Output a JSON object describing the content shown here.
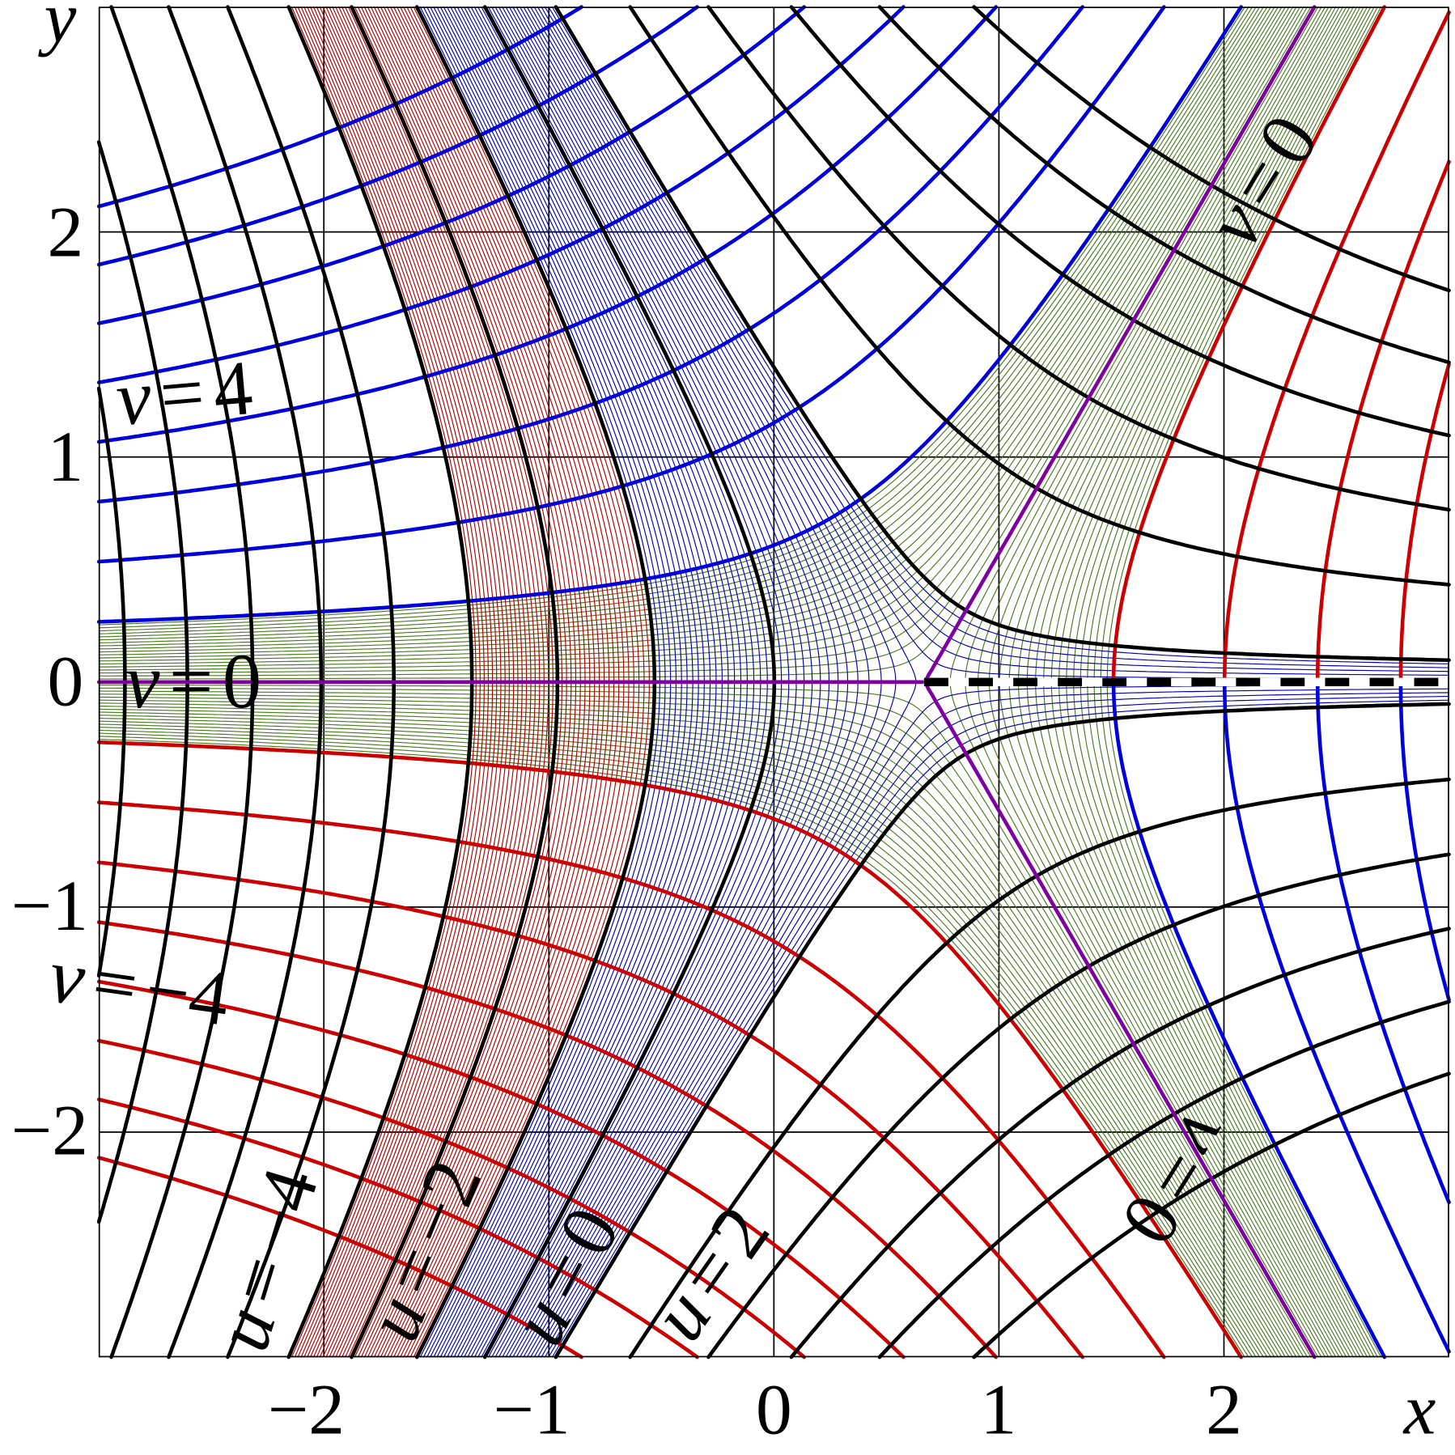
{
  "axes": {
    "x_label": "x",
    "y_label": "y",
    "x_range": [
      -3,
      3
    ],
    "y_range": [
      -3,
      3
    ],
    "x_ticks": [
      "−2",
      "−1",
      "0",
      "1",
      "2"
    ],
    "y_ticks": [
      "2",
      "1",
      "0",
      "−1",
      "−2"
    ],
    "grid": true
  },
  "labels": {
    "v_pos4": {
      "var": "v",
      "eq": "=",
      "value": "4"
    },
    "v_zero_left": {
      "var": "v",
      "eq": "=",
      "value": "0"
    },
    "v_neg4": {
      "var": "v",
      "eq": "=",
      "value": "−4"
    },
    "u_neg4": {
      "var": "u",
      "eq": "=",
      "value": "−4"
    },
    "u_neg2": {
      "var": "u",
      "eq": "=",
      "value": "−2"
    },
    "u_zero": {
      "var": "u",
      "eq": "=",
      "value": "0"
    },
    "u_pos2": {
      "var": "u",
      "eq": "=",
      "value": "2"
    },
    "v_zero_top_right": {
      "var": "v",
      "eq": "=",
      "value": "0"
    },
    "v_zero_bottom_right": {
      "var": "v",
      "eq": "=",
      "value": "0"
    }
  },
  "colors": {
    "u_lines": "#000000",
    "v_positive": "#0000dd",
    "v_negative": "#cc0000",
    "v_zero": "#7f00a0",
    "band_green": "#4a7a20",
    "band_red": "#b00000",
    "band_blue": "#0000b0",
    "grid": "#000000"
  }
}
